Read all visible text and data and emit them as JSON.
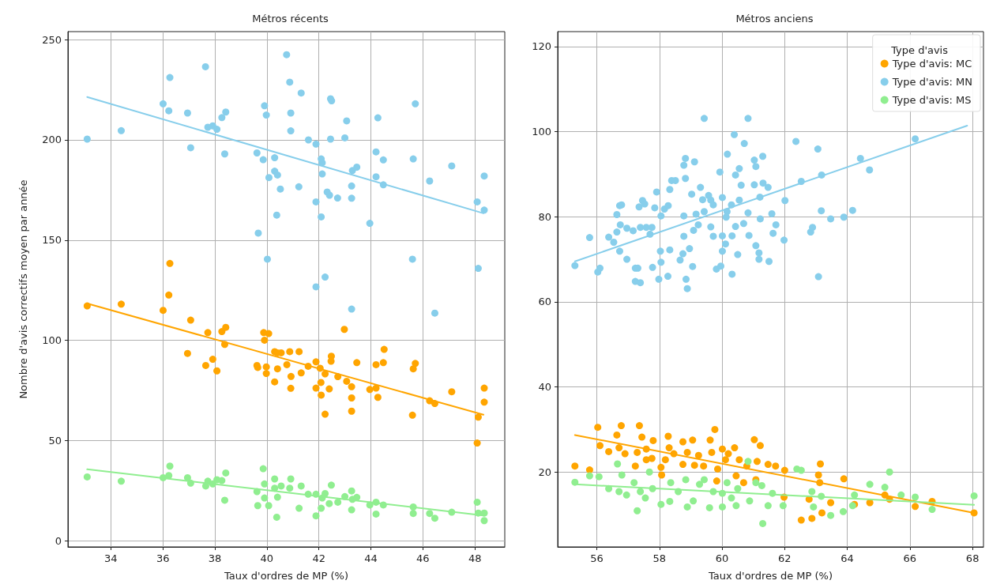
{
  "chart_data": [
    {
      "type": "scatter",
      "title": "Métros récents",
      "xlabel": "Taux d'ordres de MP (%)",
      "ylabel": "Nombre d'avis correctifs moyen par année",
      "xlim": [
        32.35,
        49.15
      ],
      "ylim": [
        -3,
        254
      ],
      "xticks": [
        34,
        36,
        38,
        40,
        42,
        44,
        46,
        48
      ],
      "yticks": [
        0,
        50,
        100,
        150,
        200,
        250
      ],
      "grid": true,
      "legend": false,
      "marker": "circle",
      "series": [
        {
          "color": "#ffa500",
          "x": [
            33.09,
            34.4,
            36.27,
            36.23,
            36.01,
            37.07,
            36.95,
            37.73,
            37.65,
            37.92,
            38.08,
            38.27,
            38.42,
            38.38,
            39.62,
            39.65,
            39.88,
            40.07,
            39.91,
            39.98,
            39.98,
            40.3,
            40.41,
            40.55,
            40.88,
            41.24,
            40.41,
            40.3,
            40.77,
            40.93,
            40.92,
            41.32,
            41.59,
            41.89,
            42.05,
            42.24,
            42.48,
            42.47,
            42.73,
            41.89,
            42.08,
            42.4,
            42.09,
            42.24,
            42.98,
            43.07,
            43.26,
            43.26,
            43.26,
            43.46,
            43.96,
            44.2,
            44.27,
            44.2,
            44.48,
            44.51,
            45.63,
            45.71,
            45.6,
            46.26,
            46.46,
            47.11,
            48.13,
            48.09,
            48.36,
            48.36
          ],
          "values": [
            117.2,
            118.1,
            138.4,
            122.6,
            115.0,
            110.1,
            93.5,
            103.9,
            87.5,
            90.6,
            84.8,
            104.4,
            106.5,
            98.0,
            87.5,
            86.5,
            103.9,
            103.4,
            100.1,
            86.8,
            83.5,
            94.4,
            93.8,
            93.8,
            94.4,
            94.4,
            85.8,
            79.3,
            87.9,
            82.0,
            76.1,
            83.8,
            87.1,
            89.3,
            86.1,
            83.3,
            92.1,
            89.6,
            81.9,
            76.2,
            79.0,
            75.8,
            72.7,
            63.2,
            105.5,
            79.6,
            76.9,
            71.3,
            64.7,
            88.9,
            75.5,
            76.2,
            71.6,
            87.9,
            88.9,
            95.5,
            85.8,
            88.5,
            62.7,
            69.9,
            68.5,
            74.4,
            61.7,
            48.8,
            76.2,
            69.2
          ]
        },
        {
          "color": "#87ceeb",
          "x": [
            33.09,
            34.4,
            36.27,
            36.01,
            36.23,
            36.95,
            37.64,
            37.07,
            37.73,
            37.92,
            38.08,
            38.27,
            38.42,
            38.38,
            39.62,
            39.86,
            39.91,
            39.98,
            40.02,
            39.67,
            40.3,
            40.3,
            40.41,
            40.08,
            40.52,
            40.38,
            40.76,
            40.88,
            41.32,
            40.92,
            40.92,
            41.23,
            41.6,
            41.89,
            41.89,
            42.09,
            42.13,
            42.13,
            42.09,
            41.89,
            42.24,
            42.45,
            42.49,
            42.45,
            42.32,
            42.41,
            42.72,
            43.0,
            43.07,
            43.26,
            43.26,
            43.29,
            43.46,
            43.26,
            43.96,
            44.2,
            44.27,
            44.2,
            44.48,
            44.48,
            45.63,
            45.71,
            45.6,
            46.26,
            46.46,
            47.11,
            48.09,
            48.13,
            48.36,
            48.36
          ],
          "values": [
            200.4,
            204.6,
            231.1,
            218.0,
            214.5,
            213.4,
            236.5,
            196.1,
            206.3,
            207.0,
            205.3,
            211.1,
            213.9,
            193.0,
            193.5,
            190.1,
            217.0,
            212.4,
            140.5,
            153.5,
            191.1,
            184.4,
            182.5,
            181.2,
            175.5,
            162.5,
            242.5,
            228.8,
            223.4,
            213.4,
            204.5,
            176.6,
            200.0,
            197.9,
            169.1,
            190.5,
            188.6,
            183.0,
            161.6,
            126.7,
            131.6,
            220.5,
            219.5,
            200.4,
            174.0,
            172.4,
            171.0,
            201.0,
            209.5,
            177.0,
            170.9,
            184.7,
            186.4,
            115.6,
            158.4,
            194.0,
            211.0,
            181.6,
            190.0,
            177.6,
            190.5,
            218.0,
            140.5,
            179.5,
            113.6,
            187.0,
            169.1,
            135.9,
            182.0,
            165.0
          ]
        },
        {
          "color": "#90ee90",
          "x": [
            33.09,
            34.4,
            36.27,
            36.23,
            36.01,
            36.95,
            37.07,
            37.73,
            37.65,
            37.92,
            38.08,
            38.27,
            38.42,
            38.38,
            39.62,
            39.65,
            39.86,
            39.91,
            39.91,
            40.07,
            40.3,
            40.3,
            40.41,
            40.38,
            40.55,
            40.92,
            40.88,
            41.24,
            41.32,
            41.59,
            41.89,
            41.89,
            42.13,
            42.09,
            42.24,
            42.4,
            42.48,
            42.73,
            43.0,
            43.26,
            43.29,
            43.26,
            43.46,
            43.96,
            44.2,
            44.2,
            44.48,
            45.63,
            45.63,
            46.26,
            46.46,
            47.11,
            48.09,
            48.13,
            48.36,
            48.36
          ],
          "values": [
            31.9,
            29.8,
            37.3,
            32.6,
            31.5,
            31.5,
            28.8,
            29.8,
            27.4,
            28.4,
            30.5,
            30.1,
            33.9,
            20.3,
            24.6,
            17.6,
            36.0,
            28.4,
            21.4,
            17.6,
            30.9,
            26.3,
            21.8,
            11.8,
            27.4,
            30.9,
            26.3,
            16.3,
            27.4,
            23.3,
            23.3,
            12.5,
            21.4,
            16.3,
            23.6,
            18.6,
            27.8,
            19.3,
            22.1,
            24.9,
            20.7,
            15.5,
            21.7,
            17.9,
            19.3,
            13.4,
            17.9,
            16.9,
            13.7,
            13.7,
            11.3,
            14.3,
            19.3,
            13.9,
            13.9,
            10.1
          ]
        },
        {
          "type": "line",
          "color": "#ffa500",
          "marker": "none",
          "x": [
            33.09,
            48.33
          ],
          "values": [
            118.4,
            62.9
          ]
        },
        {
          "type": "line",
          "color": "#87ceeb",
          "marker": "none",
          "x": [
            33.09,
            48.33
          ],
          "values": [
            221.4,
            163.4
          ]
        },
        {
          "type": "line",
          "color": "#90ee90",
          "marker": "none",
          "x": [
            33.09,
            48.33
          ],
          "values": [
            35.7,
            12.7
          ]
        }
      ]
    },
    {
      "type": "scatter",
      "title": "Métros anciens",
      "xlabel": "Taux d'ordres de MP (%)",
      "legend_title": "Type d'avis",
      "xlim": [
        54.75,
        68.35
      ],
      "ylim": [
        2.4,
        123.5
      ],
      "xticks": [
        56,
        58,
        60,
        62,
        64,
        66,
        68
      ],
      "yticks": [
        20,
        40,
        60,
        80,
        100,
        120
      ],
      "grid": true,
      "legend": "top right",
      "marker": "circle",
      "series": [
        {
          "name": "Type d'avis: MC",
          "color": "#ffa500",
          "x": [
            55.3,
            55.77,
            56.03,
            56.1,
            56.38,
            56.64,
            56.78,
            56.71,
            56.9,
            57.23,
            57.36,
            57.44,
            57.29,
            57.58,
            57.76,
            57.8,
            57.58,
            58.05,
            58.07,
            58.28,
            58.31,
            58.19,
            58.46,
            58.75,
            58.75,
            58.89,
            59.06,
            59.12,
            59.25,
            59.41,
            59.62,
            59.77,
            59.67,
            59.83,
            59.86,
            60.01,
            60.11,
            60.2,
            60.4,
            60.45,
            60.55,
            60.69,
            60.79,
            61.03,
            61.22,
            61.12,
            61.08,
            61.47,
            61.71,
            62.0,
            61.98,
            62.53,
            62.78,
            62.87,
            63.08,
            63.14,
            63.12,
            63.19,
            63.47,
            63.89,
            64.23,
            64.72,
            65.2,
            65.35,
            66.17,
            66.71,
            68.05
          ],
          "values": [
            21.4,
            20.5,
            30.5,
            26.2,
            24.8,
            28.7,
            30.9,
            25.7,
            24.3,
            21.4,
            30.9,
            28.2,
            24.6,
            22.9,
            23.2,
            27.4,
            25.4,
            21.1,
            19.3,
            28.4,
            25.7,
            22.9,
            24.3,
            27.1,
            21.8,
            24.6,
            27.5,
            21.6,
            23.9,
            21.4,
            27.5,
            30.0,
            24.6,
            17.9,
            20.7,
            25.4,
            22.9,
            24.3,
            25.7,
            19.1,
            22.9,
            17.5,
            21.4,
            27.6,
            26.2,
            22.5,
            18.2,
            21.8,
            21.4,
            20.4,
            14.1,
            8.7,
            13.6,
            9.1,
            19.3,
            21.9,
            17.5,
            10.4,
            12.8,
            18.4,
            12.4,
            12.8,
            14.6,
            13.6,
            11.9,
            13.1,
            10.4
          ]
        },
        {
          "name": "Type d'avis: MN",
          "color": "#87ceeb",
          "x": [
            55.3,
            55.77,
            56.03,
            56.1,
            56.38,
            56.54,
            56.64,
            56.64,
            56.73,
            56.79,
            56.73,
            56.75,
            56.96,
            56.96,
            57.16,
            57.23,
            57.31,
            57.23,
            57.39,
            57.35,
            57.46,
            57.53,
            57.39,
            57.58,
            57.76,
            57.7,
            57.85,
            57.78,
            57.91,
            57.98,
            58.03,
            58.05,
            58.05,
            58.16,
            58.28,
            58.33,
            58.27,
            58.33,
            58.39,
            58.51,
            58.78,
            58.83,
            58.83,
            58.78,
            58.78,
            58.66,
            58.75,
            58.96,
            58.85,
            58.89,
            59.06,
            59.03,
            59.12,
            59.09,
            59.17,
            59.24,
            59.31,
            59.38,
            59.43,
            59.43,
            59.57,
            59.64,
            59.64,
            59.72,
            59.72,
            59.82,
            59.93,
            60.01,
            60.01,
            59.96,
            60.01,
            60.11,
            60.13,
            60.16,
            60.17,
            60.32,
            60.32,
            60.3,
            60.39,
            60.43,
            60.43,
            60.5,
            60.55,
            60.55,
            60.61,
            60.69,
            60.71,
            60.83,
            60.83,
            60.86,
            61.03,
            61.08,
            61.03,
            61.08,
            61.18,
            61.18,
            61.22,
            61.21,
            61.3,
            61.31,
            61.47,
            61.5,
            61.59,
            61.63,
            61.72,
            61.98,
            62.01,
            62.36,
            62.53,
            62.83,
            62.89,
            63.06,
            63.08,
            63.17,
            63.18,
            63.47,
            63.89,
            64.17,
            64.42,
            64.71,
            66.17
          ],
          "values": [
            68.5,
            75.1,
            67.0,
            67.9,
            75.2,
            74.0,
            76.4,
            80.5,
            82.6,
            82.8,
            71.9,
            78.1,
            77.3,
            70.0,
            76.7,
            67.9,
            67.9,
            64.8,
            64.5,
            82.3,
            83.8,
            83.0,
            77.5,
            77.5,
            77.5,
            75.9,
            82.1,
            68.1,
            85.8,
            65.3,
            71.9,
            69.3,
            80.2,
            81.8,
            82.6,
            72.2,
            66.0,
            86.4,
            88.5,
            88.5,
            92.1,
            93.7,
            89.0,
            80.2,
            75.4,
            69.8,
            71.3,
            72.5,
            65.3,
            63.1,
            68.3,
            85.3,
            92.9,
            76.8,
            80.6,
            78.1,
            86.9,
            84.0,
            103.1,
            81.2,
            85.0,
            83.9,
            77.6,
            82.8,
            75.4,
            67.7,
            90.5,
            84.5,
            75.5,
            68.4,
            71.9,
            73.6,
            79.9,
            81.2,
            94.7,
            66.5,
            75.5,
            82.8,
            99.3,
            77.7,
            89.8,
            71.1,
            91.3,
            83.9,
            87.4,
            78.4,
            97.2,
            103.1,
            80.9,
            75.6,
            93.3,
            91.8,
            87.5,
            73.2,
            71.5,
            70.0,
            79.5,
            84.6,
            94.2,
            87.9,
            86.9,
            69.5,
            80.7,
            76.1,
            78.1,
            74.5,
            83.8,
            97.7,
            88.3,
            76.4,
            77.5,
            95.9,
            65.9,
            81.4,
            89.8,
            79.5,
            79.9,
            81.5,
            93.7,
            91.0,
            98.3
          ]
        },
        {
          "name": "Type d'avis: MS",
          "color": "#90ee90",
          "x": [
            55.3,
            55.77,
            56.07,
            56.66,
            56.38,
            56.71,
            56.95,
            56.8,
            57.29,
            57.19,
            57.39,
            57.55,
            57.68,
            57.78,
            58.05,
            58.33,
            58.36,
            58.6,
            58.89,
            58.84,
            59.08,
            59.28,
            59.43,
            59.6,
            59.72,
            60.01,
            60.01,
            60.16,
            60.3,
            60.45,
            60.5,
            60.83,
            60.88,
            61.08,
            61.27,
            61.3,
            61.47,
            61.61,
            61.95,
            62.39,
            62.53,
            62.87,
            62.92,
            63.17,
            63.47,
            63.87,
            64.17,
            64.23,
            64.72,
            65.2,
            65.35,
            65.72,
            66.17,
            66.71,
            68.05
          ],
          "values": [
            17.6,
            19.1,
            18.9,
            21.9,
            16.1,
            15.4,
            14.6,
            19.3,
            10.9,
            17.5,
            15.4,
            13.9,
            20.0,
            16.1,
            12.4,
            13.1,
            17.5,
            15.4,
            11.8,
            18.2,
            13.2,
            17.1,
            18.2,
            11.6,
            15.4,
            11.8,
            15.0,
            17.5,
            13.9,
            12.1,
            16.1,
            22.5,
            13.2,
            17.5,
            16.8,
            7.9,
            12.1,
            15.0,
            12.1,
            20.7,
            20.4,
            15.4,
            11.8,
            14.3,
            9.8,
            10.7,
            12.1,
            14.6,
            17.1,
            16.4,
            20.0,
            14.6,
            14.1,
            11.2,
            14.4
          ]
        },
        {
          "type": "line",
          "color": "#ffa500",
          "marker": "none",
          "x": [
            55.3,
            68.05
          ],
          "values": [
            28.7,
            10.4
          ]
        },
        {
          "type": "line",
          "color": "#87ceeb",
          "marker": "none",
          "x": [
            55.3,
            67.83
          ],
          "values": [
            69.5,
            101.4
          ]
        },
        {
          "type": "line",
          "color": "#90ee90",
          "marker": "none",
          "x": [
            55.3,
            68.05
          ],
          "values": [
            17.1,
            12.3
          ]
        }
      ]
    }
  ]
}
